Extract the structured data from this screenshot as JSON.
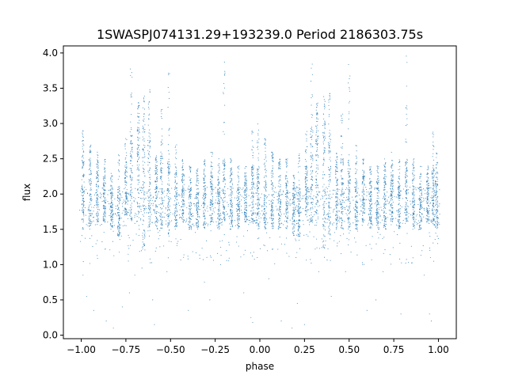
{
  "chart_data": {
    "type": "scatter",
    "title": "1SWASPJ074131.29+193239.0 Period 2186303.75s",
    "xlabel": "phase",
    "ylabel": "flux",
    "xlim": [
      -1.1,
      1.1
    ],
    "ylim": [
      -0.05,
      4.1
    ],
    "xticks": [
      -1.0,
      -0.75,
      -0.5,
      -0.25,
      0.0,
      0.25,
      0.5,
      0.75,
      1.0
    ],
    "xtick_labels": [
      "−1.00",
      "−0.75",
      "−0.50",
      "−0.25",
      "0.00",
      "0.25",
      "0.50",
      "0.75",
      "1.00"
    ],
    "yticks": [
      0.0,
      0.5,
      1.0,
      1.5,
      2.0,
      2.5,
      3.0,
      3.5,
      4.0
    ],
    "ytick_labels": [
      "0.0",
      "0.5",
      "1.0",
      "1.5",
      "2.0",
      "2.5",
      "3.0",
      "3.5",
      "4.0"
    ],
    "grid": false,
    "marker_color": "#1f77b4",
    "series": [
      {
        "columns": [
          {
            "x": -0.99,
            "low": 1.5,
            "high": 2.6,
            "peak": 2.9
          },
          {
            "x": -0.95,
            "low": 1.5,
            "high": 2.5,
            "peak": 2.7
          },
          {
            "x": -0.91,
            "low": 1.6,
            "high": 2.4,
            "peak": 2.6
          },
          {
            "x": -0.87,
            "low": 1.6,
            "high": 2.3,
            "peak": 2.5
          },
          {
            "x": -0.83,
            "low": 1.5,
            "high": 2.1,
            "peak": 2.3
          },
          {
            "x": -0.79,
            "low": 1.4,
            "high": 2.1,
            "peak": 2.6
          },
          {
            "x": -0.75,
            "low": 1.7,
            "high": 2.4,
            "peak": 2.8
          },
          {
            "x": -0.72,
            "low": 1.6,
            "high": 2.9,
            "peak": 3.9
          },
          {
            "x": -0.68,
            "low": 1.7,
            "high": 3.1,
            "peak": 3.3
          },
          {
            "x": -0.65,
            "low": 1.2,
            "high": 3.0,
            "peak": 3.4
          },
          {
            "x": -0.62,
            "low": 1.4,
            "high": 2.9,
            "peak": 3.5
          },
          {
            "x": -0.58,
            "low": 1.5,
            "high": 2.4,
            "peak": 2.6
          },
          {
            "x": -0.55,
            "low": 1.5,
            "high": 2.6,
            "peak": 3.2
          },
          {
            "x": -0.51,
            "low": 1.4,
            "high": 2.5,
            "peak": 3.9
          },
          {
            "x": -0.47,
            "low": 1.5,
            "high": 2.3,
            "peak": 2.7
          },
          {
            "x": -0.43,
            "low": 1.6,
            "high": 2.3,
            "peak": 2.5
          },
          {
            "x": -0.39,
            "low": 1.5,
            "high": 2.2,
            "peak": 2.4
          },
          {
            "x": -0.35,
            "low": 1.5,
            "high": 2.2,
            "peak": 2.4
          },
          {
            "x": -0.31,
            "low": 1.5,
            "high": 2.3,
            "peak": 2.5
          },
          {
            "x": -0.27,
            "low": 1.6,
            "high": 2.3,
            "peak": 2.6
          },
          {
            "x": -0.23,
            "low": 1.5,
            "high": 2.2,
            "peak": 2.5
          },
          {
            "x": -0.2,
            "low": 1.6,
            "high": 2.5,
            "peak": 4.0
          },
          {
            "x": -0.16,
            "low": 1.5,
            "high": 2.3,
            "peak": 2.5
          },
          {
            "x": -0.12,
            "low": 1.5,
            "high": 2.1,
            "peak": 2.4
          },
          {
            "x": -0.08,
            "low": 1.6,
            "high": 2.2,
            "peak": 2.4
          },
          {
            "x": -0.04,
            "low": 1.6,
            "high": 2.4,
            "peak": 2.9
          },
          {
            "x": -0.01,
            "low": 1.5,
            "high": 2.4,
            "peak": 3.0
          },
          {
            "x": 0.03,
            "low": 1.5,
            "high": 2.5,
            "peak": 2.8
          },
          {
            "x": 0.07,
            "low": 1.5,
            "high": 2.5,
            "peak": 2.6
          },
          {
            "x": 0.11,
            "low": 1.5,
            "high": 2.4,
            "peak": 2.5
          },
          {
            "x": 0.15,
            "low": 1.5,
            "high": 2.3,
            "peak": 2.5
          },
          {
            "x": 0.19,
            "low": 1.4,
            "high": 2.1,
            "peak": 2.3
          },
          {
            "x": 0.22,
            "low": 1.4,
            "high": 2.1,
            "peak": 2.6
          },
          {
            "x": 0.26,
            "low": 1.7,
            "high": 2.4,
            "peak": 2.9
          },
          {
            "x": 0.29,
            "low": 1.6,
            "high": 2.9,
            "peak": 3.9
          },
          {
            "x": 0.32,
            "low": 1.7,
            "high": 3.1,
            "peak": 3.3
          },
          {
            "x": 0.36,
            "low": 1.2,
            "high": 3.0,
            "peak": 3.4
          },
          {
            "x": 0.39,
            "low": 1.4,
            "high": 2.9,
            "peak": 3.5
          },
          {
            "x": 0.43,
            "low": 1.5,
            "high": 2.4,
            "peak": 2.6
          },
          {
            "x": 0.46,
            "low": 1.5,
            "high": 2.6,
            "peak": 3.2
          },
          {
            "x": 0.5,
            "low": 1.4,
            "high": 2.5,
            "peak": 3.9
          },
          {
            "x": 0.54,
            "low": 1.5,
            "high": 2.3,
            "peak": 2.7
          },
          {
            "x": 0.58,
            "low": 1.6,
            "high": 2.3,
            "peak": 2.5
          },
          {
            "x": 0.62,
            "low": 1.5,
            "high": 2.2,
            "peak": 2.4
          },
          {
            "x": 0.66,
            "low": 1.5,
            "high": 2.2,
            "peak": 2.4
          },
          {
            "x": 0.7,
            "low": 1.5,
            "high": 2.3,
            "peak": 2.5
          },
          {
            "x": 0.74,
            "low": 1.6,
            "high": 2.3,
            "peak": 2.6
          },
          {
            "x": 0.78,
            "low": 1.5,
            "high": 2.2,
            "peak": 2.5
          },
          {
            "x": 0.82,
            "low": 1.6,
            "high": 2.5,
            "peak": 4.0
          },
          {
            "x": 0.86,
            "low": 1.5,
            "high": 2.3,
            "peak": 2.5
          },
          {
            "x": 0.9,
            "low": 1.5,
            "high": 2.1,
            "peak": 2.4
          },
          {
            "x": 0.94,
            "low": 1.6,
            "high": 2.2,
            "peak": 2.4
          },
          {
            "x": 0.97,
            "low": 1.6,
            "high": 2.4,
            "peak": 2.9
          },
          {
            "x": 0.99,
            "low": 1.5,
            "high": 2.3,
            "peak": 2.6
          }
        ],
        "outliers": [
          {
            "x": -0.99,
            "y": 0.85
          },
          {
            "x": -0.97,
            "y": 0.55
          },
          {
            "x": -0.93,
            "y": 0.35
          },
          {
            "x": -0.86,
            "y": 0.2
          },
          {
            "x": -0.82,
            "y": 0.1
          },
          {
            "x": -0.77,
            "y": 0.4
          },
          {
            "x": -0.73,
            "y": 0.6
          },
          {
            "x": -0.7,
            "y": 0.85
          },
          {
            "x": -0.66,
            "y": 0.95
          },
          {
            "x": -0.6,
            "y": 0.5
          },
          {
            "x": -0.59,
            "y": 0.15
          },
          {
            "x": -0.52,
            "y": 0.9
          },
          {
            "x": -0.4,
            "y": 0.35
          },
          {
            "x": -0.31,
            "y": 0.75
          },
          {
            "x": -0.28,
            "y": 0.5
          },
          {
            "x": -0.22,
            "y": 1.0
          },
          {
            "x": -0.09,
            "y": 0.6
          },
          {
            "x": -0.05,
            "y": 0.25
          },
          {
            "x": -0.04,
            "y": 0.18
          },
          {
            "x": 0.05,
            "y": 0.8
          },
          {
            "x": 0.12,
            "y": 0.2
          },
          {
            "x": 0.18,
            "y": 0.1
          },
          {
            "x": 0.21,
            "y": 0.45
          },
          {
            "x": 0.25,
            "y": 0.15
          },
          {
            "x": 0.33,
            "y": 0.9
          },
          {
            "x": 0.4,
            "y": 0.55
          },
          {
            "x": 0.48,
            "y": 0.9
          },
          {
            "x": 0.6,
            "y": 0.35
          },
          {
            "x": 0.65,
            "y": 0.5
          },
          {
            "x": 0.69,
            "y": 0.9
          },
          {
            "x": 0.79,
            "y": 0.3
          },
          {
            "x": 0.92,
            "y": 0.85
          },
          {
            "x": 0.95,
            "y": 0.3
          },
          {
            "x": 0.96,
            "y": 0.2
          }
        ]
      }
    ]
  }
}
